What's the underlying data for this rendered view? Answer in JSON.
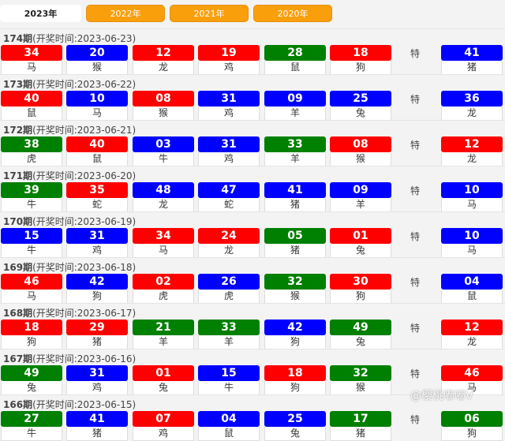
{
  "tabs": [
    "2023年",
    "2022年",
    "2021年",
    "2020年"
  ],
  "active_tab": 0,
  "colors": {
    "red": "#ff0000",
    "blue": "#0000ff",
    "green": "#008000",
    "tab": "#f99f0c"
  },
  "special_label": "特",
  "watermark": "@樱桃嘟嘟V",
  "draws": [
    {
      "issue": "174期",
      "time": "(开奖时间:2023-06-23)",
      "balls": [
        [
          "34",
          "red",
          "马"
        ],
        [
          "20",
          "blue",
          "猴"
        ],
        [
          "12",
          "red",
          "龙"
        ],
        [
          "19",
          "red",
          "鸡"
        ],
        [
          "28",
          "green",
          "鼠"
        ],
        [
          "18",
          "red",
          "狗"
        ]
      ],
      "special": [
        "41",
        "blue",
        "猪"
      ]
    },
    {
      "issue": "173期",
      "time": "(开奖时间:2023-06-22)",
      "balls": [
        [
          "40",
          "red",
          "鼠"
        ],
        [
          "10",
          "blue",
          "马"
        ],
        [
          "08",
          "red",
          "猴"
        ],
        [
          "31",
          "blue",
          "鸡"
        ],
        [
          "09",
          "blue",
          "羊"
        ],
        [
          "25",
          "blue",
          "兔"
        ]
      ],
      "special": [
        "36",
        "blue",
        "龙"
      ]
    },
    {
      "issue": "172期",
      "time": "(开奖时间:2023-06-21)",
      "balls": [
        [
          "38",
          "green",
          "虎"
        ],
        [
          "40",
          "red",
          "鼠"
        ],
        [
          "03",
          "blue",
          "牛"
        ],
        [
          "31",
          "blue",
          "鸡"
        ],
        [
          "33",
          "green",
          "羊"
        ],
        [
          "08",
          "red",
          "猴"
        ]
      ],
      "special": [
        "12",
        "red",
        "龙"
      ]
    },
    {
      "issue": "171期",
      "time": "(开奖时间:2023-06-20)",
      "balls": [
        [
          "39",
          "green",
          "牛"
        ],
        [
          "35",
          "red",
          "蛇"
        ],
        [
          "48",
          "blue",
          "龙"
        ],
        [
          "47",
          "blue",
          "蛇"
        ],
        [
          "41",
          "blue",
          "猪"
        ],
        [
          "09",
          "blue",
          "羊"
        ]
      ],
      "special": [
        "10",
        "blue",
        "马"
      ]
    },
    {
      "issue": "170期",
      "time": "(开奖时间:2023-06-19)",
      "balls": [
        [
          "15",
          "blue",
          "牛"
        ],
        [
          "31",
          "blue",
          "鸡"
        ],
        [
          "34",
          "red",
          "马"
        ],
        [
          "24",
          "red",
          "龙"
        ],
        [
          "05",
          "green",
          "猪"
        ],
        [
          "01",
          "red",
          "兔"
        ]
      ],
      "special": [
        "10",
        "blue",
        "马"
      ]
    },
    {
      "issue": "169期",
      "time": "(开奖时间:2023-06-18)",
      "balls": [
        [
          "46",
          "red",
          "马"
        ],
        [
          "42",
          "blue",
          "狗"
        ],
        [
          "02",
          "red",
          "虎"
        ],
        [
          "26",
          "blue",
          "虎"
        ],
        [
          "32",
          "green",
          "猴"
        ],
        [
          "30",
          "red",
          "狗"
        ]
      ],
      "special": [
        "04",
        "blue",
        "鼠"
      ]
    },
    {
      "issue": "168期",
      "time": "(开奖时间:2023-06-17)",
      "balls": [
        [
          "18",
          "red",
          "狗"
        ],
        [
          "29",
          "red",
          "猪"
        ],
        [
          "21",
          "green",
          "羊"
        ],
        [
          "33",
          "green",
          "羊"
        ],
        [
          "42",
          "blue",
          "狗"
        ],
        [
          "49",
          "green",
          "兔"
        ]
      ],
      "special": [
        "12",
        "red",
        "龙"
      ]
    },
    {
      "issue": "167期",
      "time": "(开奖时间:2023-06-16)",
      "balls": [
        [
          "49",
          "green",
          "兔"
        ],
        [
          "31",
          "blue",
          "鸡"
        ],
        [
          "01",
          "red",
          "兔"
        ],
        [
          "15",
          "blue",
          "牛"
        ],
        [
          "18",
          "red",
          "狗"
        ],
        [
          "32",
          "green",
          "猴"
        ]
      ],
      "special": [
        "46",
        "red",
        "马"
      ]
    },
    {
      "issue": "166期",
      "time": "(开奖时间:2023-06-15)",
      "balls": [
        [
          "27",
          "green",
          "牛"
        ],
        [
          "41",
          "blue",
          "猪"
        ],
        [
          "07",
          "red",
          "鸡"
        ],
        [
          "04",
          "blue",
          "鼠"
        ],
        [
          "25",
          "blue",
          "兔"
        ],
        [
          "17",
          "green",
          "猪"
        ]
      ],
      "special": [
        "06",
        "green",
        "狗"
      ]
    }
  ]
}
